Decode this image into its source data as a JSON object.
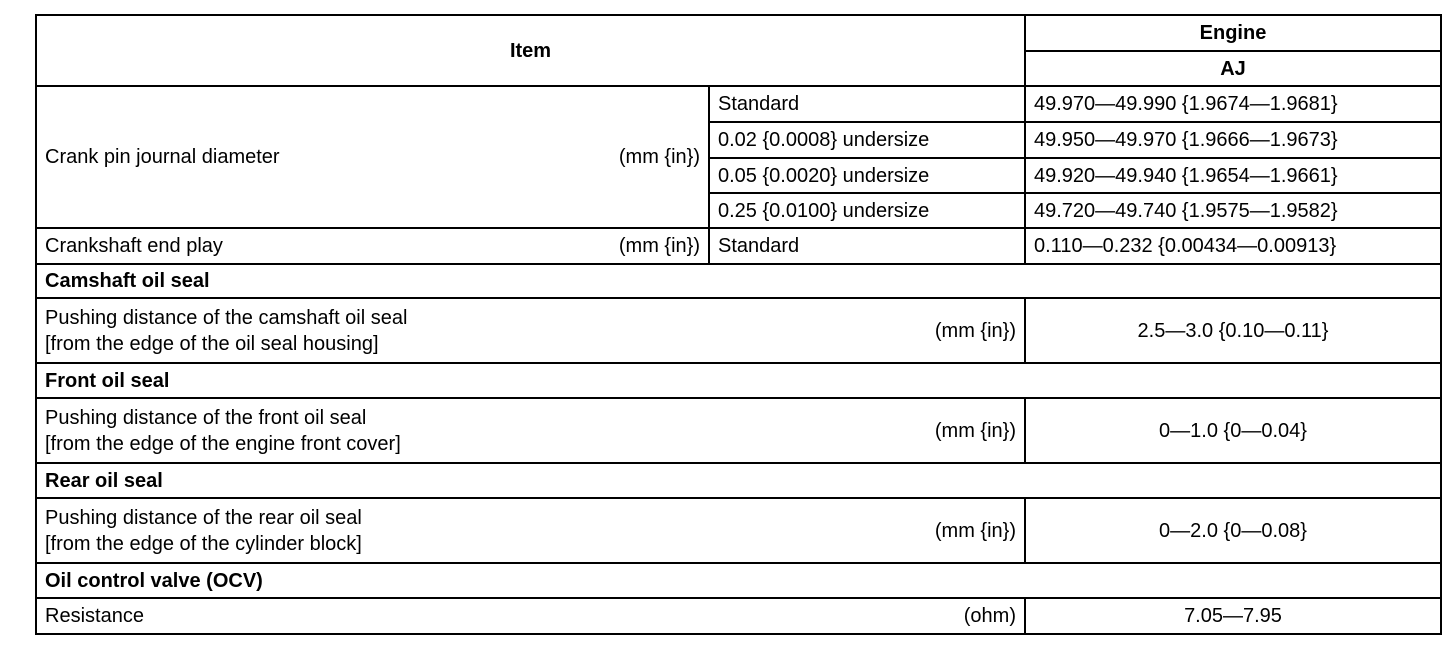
{
  "header": {
    "item": "Item",
    "engine": "Engine",
    "engine_model": "AJ"
  },
  "crank_pin": {
    "label": "Crank pin journal diameter",
    "unit": "(mm {in})",
    "rows": [
      {
        "condition": "Standard",
        "value": "49.970—49.990 {1.9674—1.9681}"
      },
      {
        "condition": "0.02 {0.0008} undersize",
        "value": "49.950—49.970 {1.9666—1.9673}"
      },
      {
        "condition": "0.05 {0.0020} undersize",
        "value": "49.920—49.940 {1.9654—1.9661}"
      },
      {
        "condition": "0.25 {0.0100} undersize",
        "value": "49.720—49.740 {1.9575—1.9582}"
      }
    ]
  },
  "end_play": {
    "label": "Crankshaft end play",
    "unit": "(mm {in})",
    "condition": "Standard",
    "value": "0.110—0.232 {0.00434—0.00913}"
  },
  "sections": [
    {
      "title": "Camshaft oil seal",
      "line1": "Pushing distance of the camshaft oil seal",
      "line2": "[from the edge of the oil seal housing]",
      "unit": "(mm {in})",
      "value": "2.5—3.0 {0.10—0.11}"
    },
    {
      "title": "Front oil seal",
      "line1": "Pushing distance of the front oil seal",
      "line2": "[from the edge of the engine front cover]",
      "unit": "(mm {in})",
      "value": "0—1.0 {0—0.04}"
    },
    {
      "title": "Rear oil seal",
      "line1": "Pushing distance of the rear oil seal",
      "line2": "[from the edge of the cylinder block]",
      "unit": "(mm {in})",
      "value": "0—2.0 {0—0.08}"
    }
  ],
  "ocv": {
    "title": "Oil control valve (OCV)",
    "label": "Resistance",
    "unit": "(ohm)",
    "value": "7.05—7.95"
  }
}
